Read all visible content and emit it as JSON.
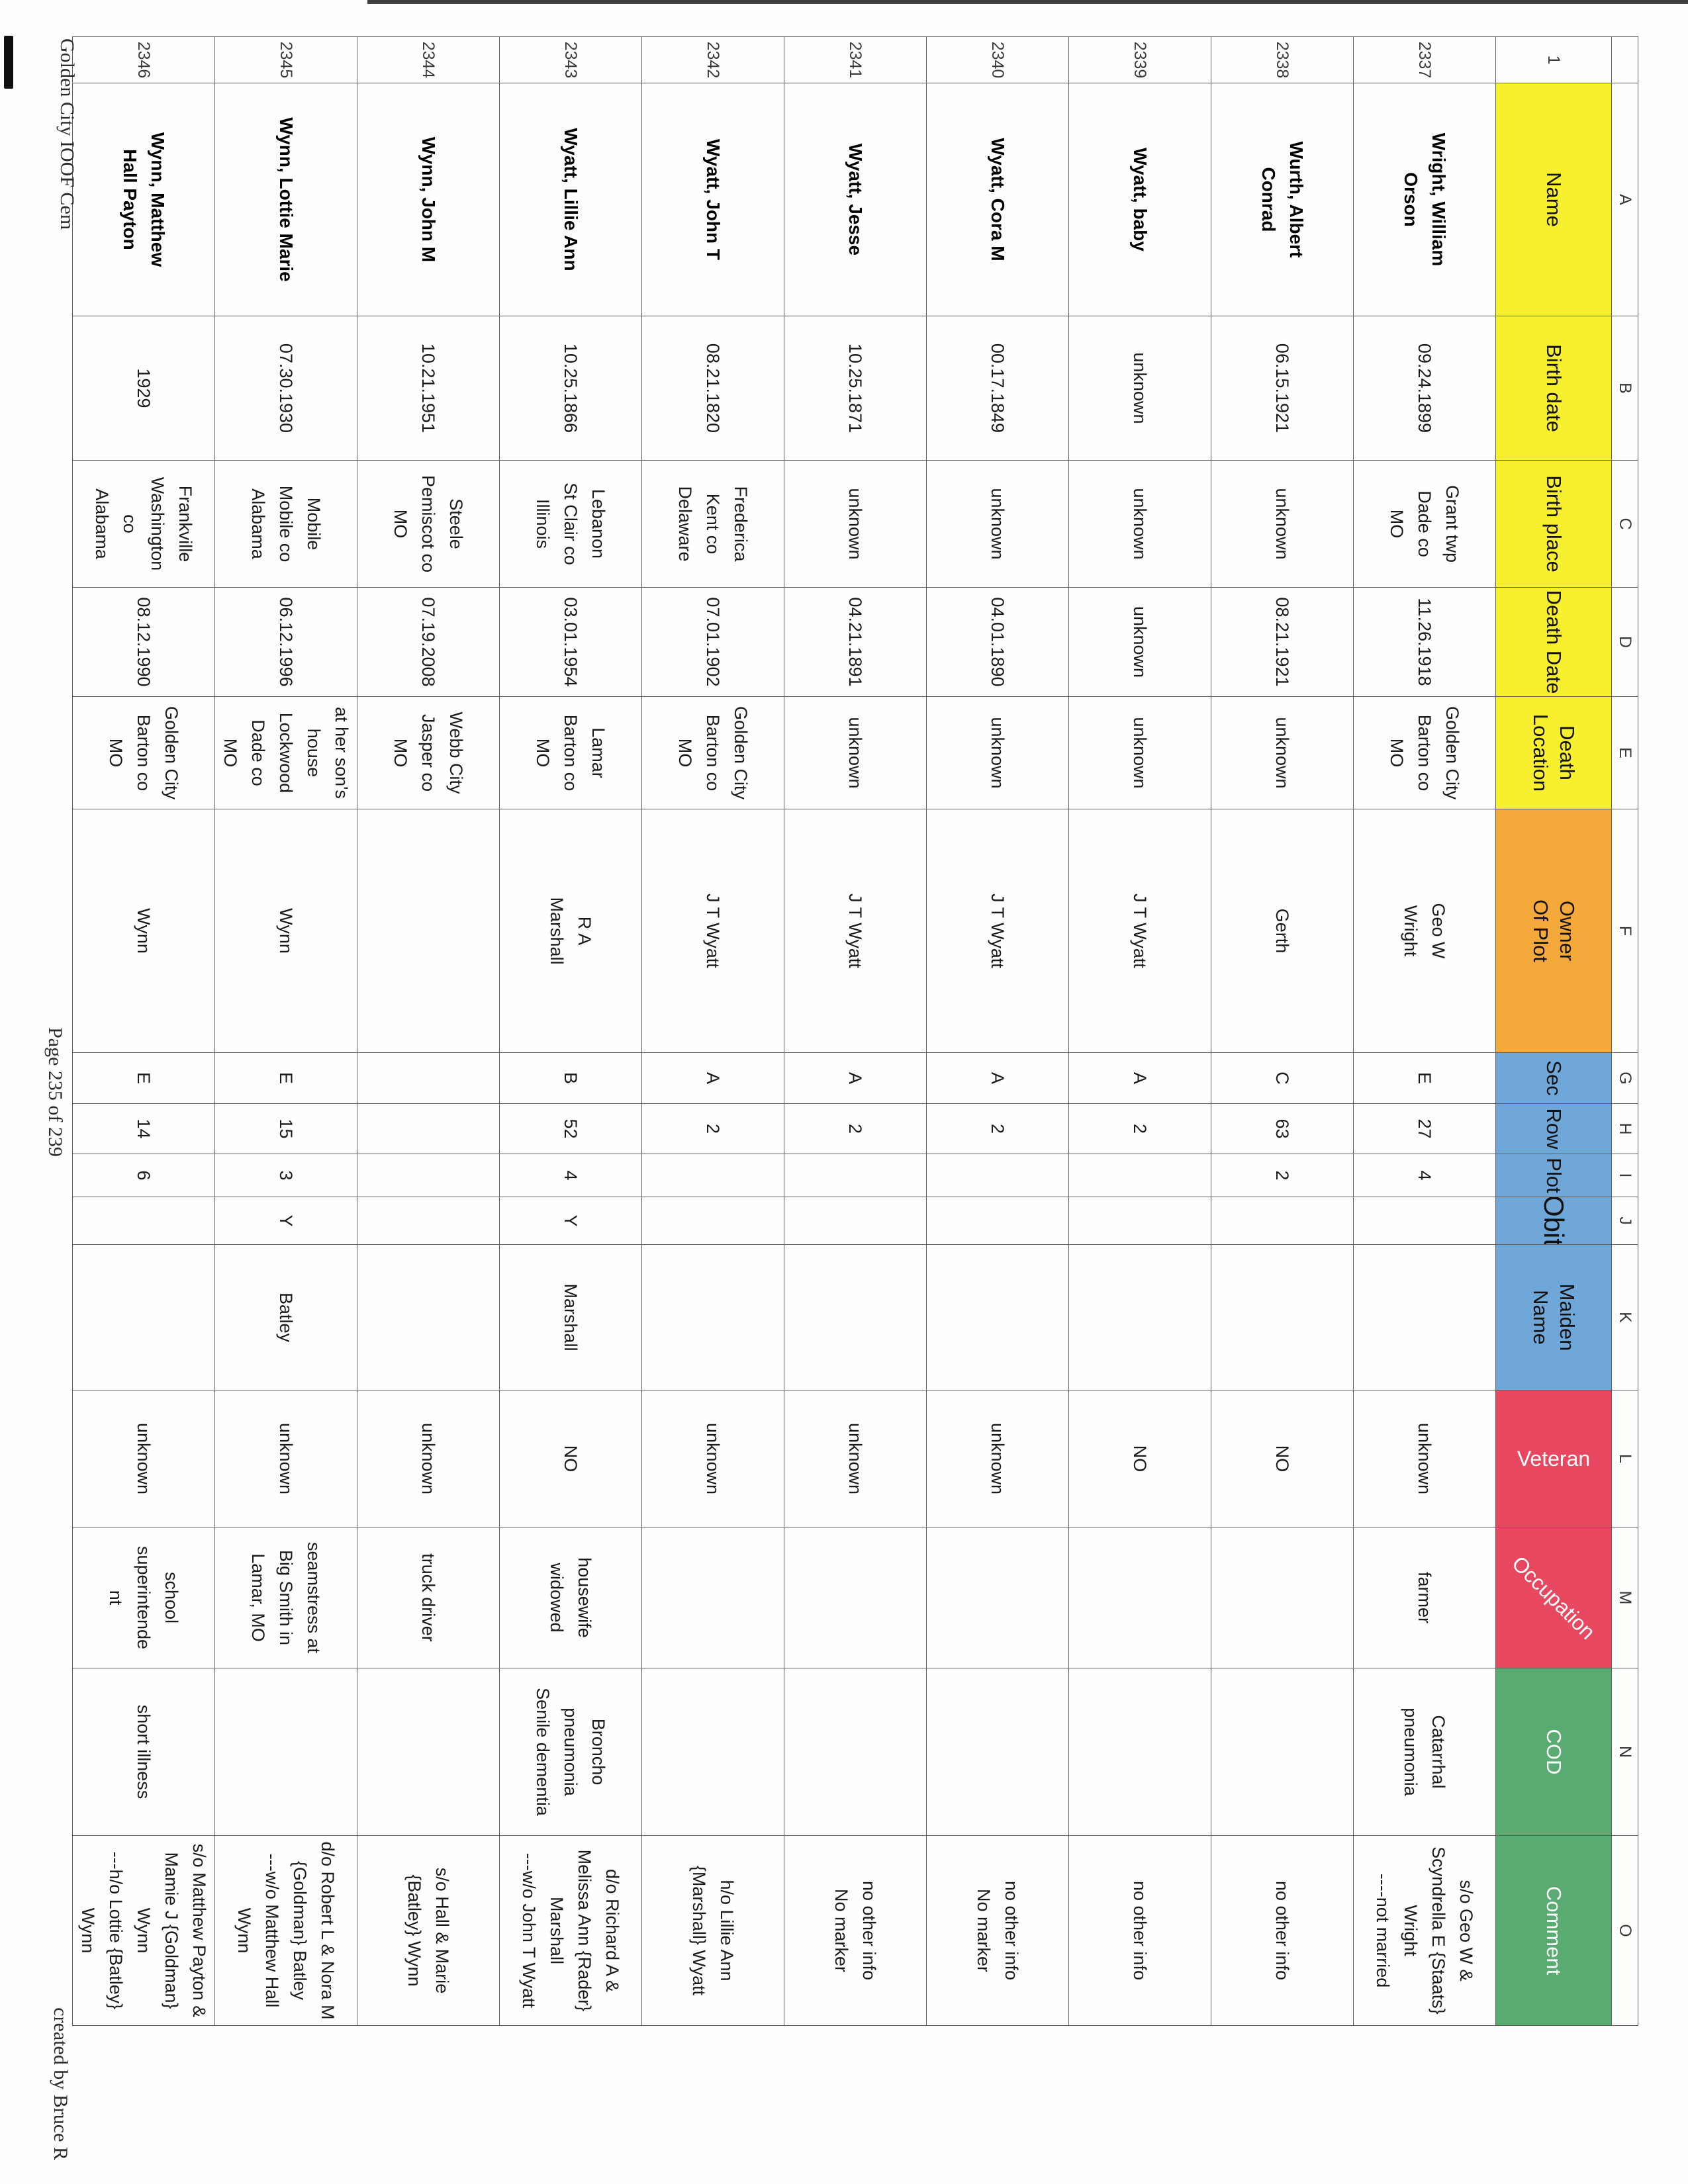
{
  "sheet": {
    "row_header_number": "1",
    "columns": [
      {
        "key": "name",
        "letter": "A",
        "label": "Name",
        "bg": "#f8ef2e",
        "fg": "#111111"
      },
      {
        "key": "birth_date",
        "letter": "B",
        "label": "Birth date",
        "bg": "#f8ef2e",
        "fg": "#111111"
      },
      {
        "key": "birth_place",
        "letter": "C",
        "label": "Birth place",
        "bg": "#f8ef2e",
        "fg": "#111111"
      },
      {
        "key": "death_date",
        "letter": "D",
        "label": "Death Date",
        "bg": "#f8ef2e",
        "fg": "#111111"
      },
      {
        "key": "death_location",
        "letter": "E",
        "label": "Death\nLocation",
        "bg": "#f8ef2e",
        "fg": "#111111"
      },
      {
        "key": "owner",
        "letter": "F",
        "label": "Owner\nOf Plot",
        "bg": "#f6a93b",
        "fg": "#111111"
      },
      {
        "key": "sec",
        "letter": "G",
        "label": "Sec",
        "bg": "#6fa7d8",
        "fg": "#111111"
      },
      {
        "key": "row",
        "letter": "H",
        "label": "Row",
        "bg": "#6fa7d8",
        "fg": "#111111"
      },
      {
        "key": "plot",
        "letter": "I",
        "label": "Plot",
        "bg": "#6fa7d8",
        "fg": "#111111"
      },
      {
        "key": "obit",
        "letter": "J",
        "label": "Obit",
        "bg": "#6fa7d8",
        "fg": "#111111"
      },
      {
        "key": "maiden",
        "letter": "K",
        "label": "Maiden\nName",
        "bg": "#6fa7d8",
        "fg": "#111111"
      },
      {
        "key": "veteran",
        "letter": "L",
        "label": "Veteran",
        "bg": "#e8485f",
        "fg": "#ffffff"
      },
      {
        "key": "occupation",
        "letter": "M",
        "label": "Occupation",
        "bg": "#e8485f",
        "fg": "#ffffff"
      },
      {
        "key": "cod",
        "letter": "N",
        "label": "COD",
        "bg": "#5aab72",
        "fg": "#ffffff"
      },
      {
        "key": "comment",
        "letter": "O",
        "label": "Comment",
        "bg": "#5aab72",
        "fg": "#ffffff"
      }
    ],
    "rows": [
      {
        "num": "2337",
        "name": "Wright, William\nOrson",
        "birth_date": "09.24.1899",
        "birth_place": "Grant twp\nDade co\nMO",
        "death_date": "11.26.1918",
        "death_location": "Golden City\nBarton co\nMO",
        "owner": "Geo W\nWright",
        "sec": "E",
        "row": "27",
        "plot": "4",
        "obit": "",
        "maiden": "",
        "veteran": "unknown",
        "occupation": "farmer",
        "cod": "Catarrhal\npneumonia",
        "comment": "s/o Geo W &\nScyndrella E {Staats}\nWright\n----not married"
      },
      {
        "num": "2338",
        "name": "Wurth, Albert\nConrad",
        "birth_date": "06.15.1921",
        "birth_place": "unknown",
        "death_date": "08.21.1921",
        "death_location": "unknown",
        "owner": "Gerth",
        "sec": "C",
        "row": "63",
        "plot": "2",
        "obit": "",
        "maiden": "",
        "veteran": "NO",
        "occupation": "",
        "cod": "",
        "comment": "no other info"
      },
      {
        "num": "2339",
        "name": "Wyatt, baby",
        "birth_date": "unknown",
        "birth_place": "unknown",
        "death_date": "unknown",
        "death_location": "unknown",
        "owner": "J T Wyatt",
        "sec": "A",
        "row": "2",
        "plot": "",
        "obit": "",
        "maiden": "",
        "veteran": "NO",
        "occupation": "",
        "cod": "",
        "comment": "no other info"
      },
      {
        "num": "2340",
        "name": "Wyatt, Cora M",
        "birth_date": "00.17.1849",
        "birth_place": "unknown",
        "death_date": "04.01.1890",
        "death_location": "unknown",
        "owner": "J T Wyatt",
        "sec": "A",
        "row": "2",
        "plot": "",
        "obit": "",
        "maiden": "",
        "veteran": "unknown",
        "occupation": "",
        "cod": "",
        "comment": "no other info\nNo marker"
      },
      {
        "num": "2341",
        "name": "Wyatt, Jesse",
        "birth_date": "10.25.1871",
        "birth_place": "unknown",
        "death_date": "04.21.1891",
        "death_location": "unknown",
        "owner": "J T Wyatt",
        "sec": "A",
        "row": "2",
        "plot": "",
        "obit": "",
        "maiden": "",
        "veteran": "unknown",
        "occupation": "",
        "cod": "",
        "comment": "no other info\nNo marker"
      },
      {
        "num": "2342",
        "name": "Wyatt, John T",
        "birth_date": "08.21.1820",
        "birth_place": "Frederica\nKent co\nDelaware",
        "death_date": "07.01.1902",
        "death_location": "Golden City\nBarton co\nMO",
        "owner": "J T Wyatt",
        "sec": "A",
        "row": "2",
        "plot": "",
        "obit": "",
        "maiden": "",
        "veteran": "unknown",
        "occupation": "",
        "cod": "",
        "comment": "h/o Lillie Ann\n{Marshall} Wyatt"
      },
      {
        "num": "2343",
        "name": "Wyatt, Lillie Ann",
        "birth_date": "10.25.1866",
        "birth_place": "Lebanon\nSt Clair co\nIllinois",
        "death_date": "03.01.1954",
        "death_location": "Lamar\nBarton co\nMO",
        "owner": "R A\nMarshall",
        "sec": "B",
        "row": "52",
        "plot": "4",
        "obit": "Y",
        "maiden": "Marshall",
        "veteran": "NO",
        "occupation": "housewife\nwidowed",
        "cod": "Broncho\npneumonia\nSenile dementia",
        "comment": "d/o Richard A &\nMelissa Ann {Rader}\nMarshall\n---w/o John T Wyatt"
      },
      {
        "num": "2344",
        "name": "Wynn, John M",
        "birth_date": "10.21.1951",
        "birth_place": "Steele\nPemiscot co\nMO",
        "death_date": "07.19.2008",
        "death_location": "Webb City\nJasper co\nMO",
        "owner": "",
        "sec": "",
        "row": "",
        "plot": "",
        "obit": "",
        "maiden": "",
        "veteran": "unknown",
        "occupation": "truck driver",
        "cod": "",
        "comment": "s/o Hall & Marie\n{Batley} Wynn"
      },
      {
        "num": "2345",
        "name": "Wynn, Lottie Marie",
        "birth_date": "07.30.1930",
        "birth_place": "Mobile\nMobile co\nAlabama",
        "death_date": "06.12.1996",
        "death_location": "at her son's\nhouse\nLockwood\nDade co\nMO",
        "owner": "Wynn",
        "sec": "E",
        "row": "15",
        "plot": "3",
        "obit": "Y",
        "maiden": "Batley",
        "veteran": "unknown",
        "occupation": "seamstress at\nBig Smith in\nLamar, MO",
        "cod": "",
        "comment": "d/o Robert L & Nora M\n{Goldman} Batley\n---w/o Matthew Hall\nWynn"
      },
      {
        "num": "2346",
        "name": "Wynn, Matthew\nHall Payton",
        "birth_date": "1929",
        "birth_place": "Frankville\nWashington\nco\nAlabama",
        "death_date": "08.12.1990",
        "death_location": "Golden City\nBarton co\nMO",
        "owner": "Wynn",
        "sec": "E",
        "row": "14",
        "plot": "6",
        "obit": "",
        "maiden": "",
        "veteran": "unknown",
        "occupation": "school\nsuperintende\nnt",
        "cod": "short illness",
        "comment": "s/o Matthew Payton &\nMamie J {Goldman}\nWynn\n---h/o Lottie {Batley}\nWynn"
      }
    ],
    "footer": {
      "left": "Golden City IOOF Cem",
      "center": "Page 235 of 239",
      "right": "created by Bruce R"
    }
  }
}
